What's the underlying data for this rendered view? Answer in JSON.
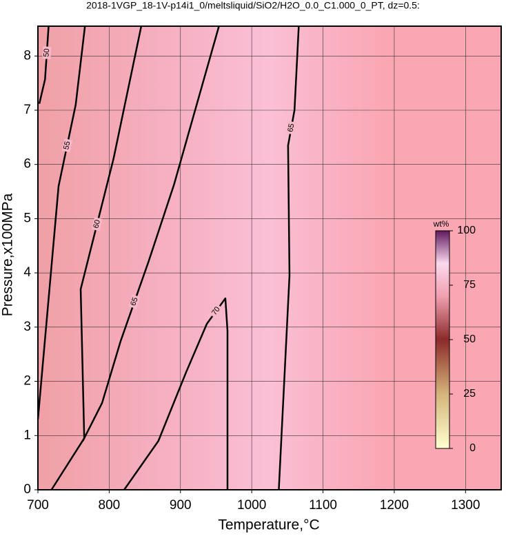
{
  "chart_data": {
    "type": "contour",
    "title": "2018-1VGP_18-1V-p14i1_0/meltsliquid/SiO2/H2O_0.0_C1.000_0_PT, dz=0.5:",
    "x_label": "Temperature,°C",
    "y_label": "Pressure,x100MPa",
    "xlim": [
      700,
      1350
    ],
    "ylim": [
      0,
      8.55
    ],
    "xticks": [
      700,
      800,
      900,
      1000,
      1100,
      1200,
      1300
    ],
    "yticks": [
      0,
      1,
      2,
      3,
      4,
      5,
      6,
      7,
      8
    ],
    "grid": true,
    "line_color": "#000000",
    "contours": [
      {
        "level": 50,
        "x": [
          702,
          710,
          715
        ],
        "y": [
          7.12,
          7.57,
          8.55
        ]
      },
      {
        "level": 55,
        "x": [
          700,
          729,
          753,
          766
        ],
        "y": [
          1.3,
          5.6,
          7.1,
          8.55
        ]
      },
      {
        "level": 60,
        "x": [
          719,
          765,
          760,
          806,
          845
        ],
        "y": [
          0,
          0.95,
          3.7,
          6.1,
          8.55
        ]
      },
      {
        "level": 65,
        "x": [
          763,
          790,
          816,
          855,
          891,
          954
        ],
        "y": [
          0.9,
          1.6,
          2.74,
          4.2,
          5.63,
          8.55
        ]
      },
      {
        "level": 70,
        "x": [
          821,
          869,
          908,
          937,
          963,
          966,
          966
        ],
        "y": [
          0,
          0.9,
          2.17,
          3.06,
          3.53,
          2.93,
          0
        ]
      },
      {
        "level": 65,
        "x": [
          1038,
          1053,
          1051,
          1060,
          1066
        ],
        "y": [
          0,
          3.95,
          6.35,
          7.0,
          8.55
        ]
      }
    ],
    "colorbar": {
      "label": "wt%",
      "lim": [
        0,
        100
      ],
      "ticks": [
        0,
        25,
        50,
        75,
        100
      ]
    }
  }
}
